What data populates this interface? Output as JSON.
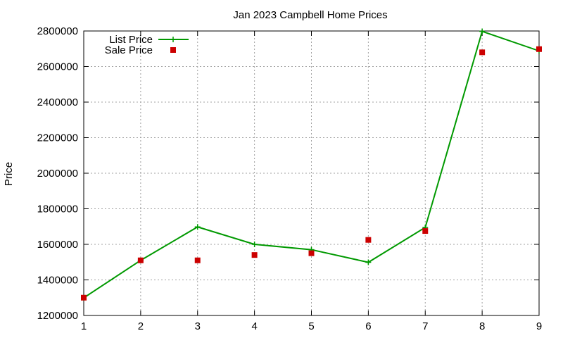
{
  "chart_data": {
    "type": "line",
    "title": "Jan 2023 Campbell Home Prices",
    "xlabel": "",
    "ylabel": "Price",
    "x": [
      1,
      2,
      3,
      4,
      5,
      6,
      7,
      8,
      9
    ],
    "xlim": [
      1,
      9
    ],
    "ylim": [
      1200000,
      2800000
    ],
    "yticks": [
      1200000,
      1400000,
      1600000,
      1800000,
      2000000,
      2200000,
      2400000,
      2600000,
      2800000
    ],
    "xticks": [
      1,
      2,
      3,
      4,
      5,
      6,
      7,
      8,
      9
    ],
    "grid": true,
    "legend_position": "top-left",
    "series": [
      {
        "name": "List Price",
        "style": "line-with-plus-markers",
        "color": "#009900",
        "values": [
          1299000,
          1510000,
          1698000,
          1600000,
          1570000,
          1499000,
          1695000,
          2798000,
          2688000
        ]
      },
      {
        "name": "Sale Price",
        "style": "square-markers",
        "color": "#cc0000",
        "values": [
          1300000,
          1510000,
          1510000,
          1540000,
          1550000,
          1625000,
          1675000,
          2680000,
          2698000
        ]
      }
    ]
  }
}
